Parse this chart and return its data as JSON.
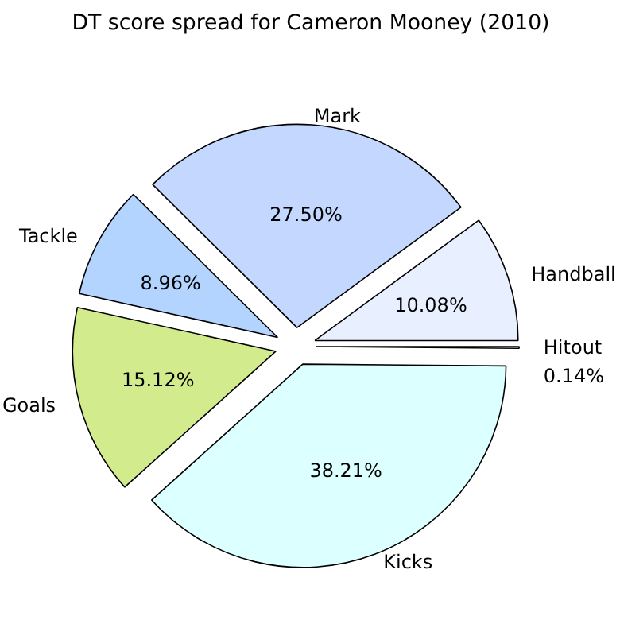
{
  "chart_data": {
    "type": "pie",
    "title": "DT score spread for Cameron Mooney (2010)",
    "categories": [
      "Handball",
      "Mark",
      "Tackle",
      "Goals",
      "Kicks",
      "Hitout"
    ],
    "values": [
      10.08,
      27.5,
      8.96,
      15.12,
      38.21,
      0.14
    ],
    "colors": [
      "#e8efff",
      "#c4d8ff",
      "#b3d4ff",
      "#d2eb8c",
      "#dcffff",
      "#f0f4ff"
    ],
    "data_labels": true,
    "value_labels": [
      "10.08%",
      "27.50%",
      "8.96%",
      "15.12%",
      "38.21%",
      "0.14%"
    ]
  }
}
